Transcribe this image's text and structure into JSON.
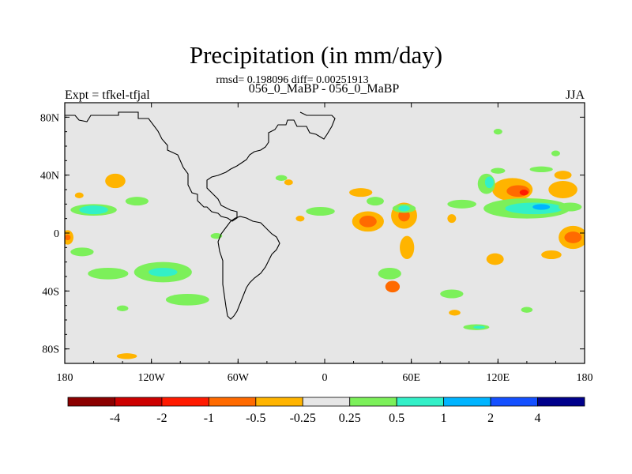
{
  "chart_data": {
    "type": "heatmap",
    "title": "Precipitation (in mm/day)",
    "stats": "rmsd= 0.198096 diff= 0.00251913",
    "subtitle_center": "056_0_MaBP - 056_0_MaBP",
    "subtitle_left": "Expt = tfkel-tfjal",
    "subtitle_right": "JJA",
    "x_ticks": [
      "180",
      "120W",
      "60W",
      "0",
      "60E",
      "120E",
      "180"
    ],
    "x_values": [
      -180,
      -120,
      -60,
      0,
      60,
      120,
      180
    ],
    "y_ticks": [
      "80N",
      "40N",
      "0",
      "40S",
      "80S"
    ],
    "y_values": [
      80,
      40,
      0,
      -40,
      -80
    ],
    "xlim": [
      -180,
      180
    ],
    "ylim": [
      -90,
      90
    ],
    "grid": false,
    "colorbar": {
      "labels": [
        "-4",
        "-2",
        "-1",
        "-0.5",
        "-0.25",
        "0.25",
        "0.5",
        "1",
        "2",
        "4"
      ],
      "colors": [
        "#8b0000",
        "#cc0000",
        "#ff1a00",
        "#ff6a00",
        "#ffb400",
        "#e6e6e6",
        "#7cf05a",
        "#33f0c8",
        "#00b4ff",
        "#1450ff",
        "#00008b"
      ]
    },
    "background_color": "#e6e6e6",
    "anomaly_regions": [
      {
        "lon": 30,
        "lat": 8,
        "rlon": 11,
        "rlat": 7,
        "level": 4
      },
      {
        "lon": 30,
        "lat": 8,
        "rlon": 6,
        "rlat": 4,
        "level": 3
      },
      {
        "lon": 55,
        "lat": 12,
        "rlon": 9,
        "rlat": 9,
        "level": 4
      },
      {
        "lon": 55,
        "lat": 12,
        "rlon": 4,
        "rlat": 4,
        "level": 3
      },
      {
        "lon": 57,
        "lat": -10,
        "rlon": 5,
        "rlat": 8,
        "level": 4
      },
      {
        "lon": 25,
        "lat": 28,
        "rlon": 8,
        "rlat": 3,
        "level": 4
      },
      {
        "lon": 47,
        "lat": -37,
        "rlon": 5,
        "rlat": 4,
        "level": 3
      },
      {
        "lon": 130,
        "lat": 30,
        "rlon": 14,
        "rlat": 8,
        "level": 4
      },
      {
        "lon": 134,
        "lat": 29,
        "rlon": 8,
        "rlat": 4,
        "level": 3
      },
      {
        "lon": 138,
        "lat": 28,
        "rlon": 3,
        "rlat": 2,
        "level": 2
      },
      {
        "lon": 165,
        "lat": 30,
        "rlon": 10,
        "rlat": 6,
        "level": 4
      },
      {
        "lon": 172,
        "lat": -3,
        "rlon": 10,
        "rlat": 8,
        "level": 4
      },
      {
        "lon": 172,
        "lat": -3,
        "rlon": 6,
        "rlat": 4,
        "level": 3
      },
      {
        "lon": 157,
        "lat": -15,
        "rlon": 7,
        "rlat": 3,
        "level": 4
      },
      {
        "lon": 118,
        "lat": -18,
        "rlon": 6,
        "rlat": 4,
        "level": 4
      },
      {
        "lon": -178,
        "lat": -3,
        "rlon": 4,
        "rlat": 5,
        "level": 4
      },
      {
        "lon": -178,
        "lat": -3,
        "rlon": 2,
        "rlat": 2,
        "level": 3
      },
      {
        "lon": -145,
        "lat": 36,
        "rlon": 7,
        "rlat": 5,
        "level": 4
      },
      {
        "lon": -170,
        "lat": 26,
        "rlon": 3,
        "rlat": 2,
        "level": 4
      },
      {
        "lon": -25,
        "lat": 35,
        "rlon": 3,
        "rlat": 2,
        "level": 4
      },
      {
        "lon": -17,
        "lat": 10,
        "rlon": 3,
        "rlat": 2,
        "level": 4
      },
      {
        "lon": 88,
        "lat": 10,
        "rlon": 3,
        "rlat": 3,
        "level": 4
      },
      {
        "lon": 165,
        "lat": 40,
        "rlon": 6,
        "rlat": 3,
        "level": 4
      },
      {
        "lon": 143,
        "lat": 38,
        "rlon": 7,
        "rlat": 2,
        "level": 5
      },
      {
        "lon": 90,
        "lat": -55,
        "rlon": 4,
        "rlat": 2,
        "level": 4
      },
      {
        "lon": -137,
        "lat": -85,
        "rlon": 7,
        "rlat": 2,
        "level": 4
      },
      {
        "lon": -160,
        "lat": 16,
        "rlon": 16,
        "rlat": 4,
        "level": 6
      },
      {
        "lon": -160,
        "lat": 16,
        "rlon": 10,
        "rlat": 3,
        "level": 7
      },
      {
        "lon": -130,
        "lat": 22,
        "rlon": 8,
        "rlat": 3,
        "level": 6
      },
      {
        "lon": -168,
        "lat": -13,
        "rlon": 8,
        "rlat": 3,
        "level": 6
      },
      {
        "lon": -150,
        "lat": -28,
        "rlon": 14,
        "rlat": 4,
        "level": 6
      },
      {
        "lon": -112,
        "lat": -27,
        "rlon": 20,
        "rlat": 7,
        "level": 6
      },
      {
        "lon": -112,
        "lat": -27,
        "rlon": 10,
        "rlat": 3,
        "level": 7
      },
      {
        "lon": -95,
        "lat": -46,
        "rlon": 15,
        "rlat": 4,
        "level": 6
      },
      {
        "lon": -30,
        "lat": 38,
        "rlon": 4,
        "rlat": 2,
        "level": 6
      },
      {
        "lon": -3,
        "lat": 15,
        "rlon": 10,
        "rlat": 3,
        "level": 6
      },
      {
        "lon": 35,
        "lat": 22,
        "rlon": 6,
        "rlat": 3,
        "level": 6
      },
      {
        "lon": 55,
        "lat": 17,
        "rlon": 8,
        "rlat": 3,
        "level": 6
      },
      {
        "lon": 55,
        "lat": 17,
        "rlon": 4,
        "rlat": 2,
        "level": 7
      },
      {
        "lon": 45,
        "lat": -28,
        "rlon": 8,
        "rlat": 4,
        "level": 6
      },
      {
        "lon": 95,
        "lat": 20,
        "rlon": 10,
        "rlat": 3,
        "level": 6
      },
      {
        "lon": 140,
        "lat": 17,
        "rlon": 30,
        "rlat": 7,
        "level": 6
      },
      {
        "lon": 145,
        "lat": 17,
        "rlon": 20,
        "rlat": 4,
        "level": 7
      },
      {
        "lon": 150,
        "lat": 18,
        "rlon": 6,
        "rlat": 2,
        "level": 8
      },
      {
        "lon": 112,
        "lat": 34,
        "rlon": 6,
        "rlat": 7,
        "level": 6
      },
      {
        "lon": 114,
        "lat": 35,
        "rlon": 3,
        "rlat": 4,
        "level": 7
      },
      {
        "lon": 120,
        "lat": 43,
        "rlon": 5,
        "rlat": 2,
        "level": 6
      },
      {
        "lon": 150,
        "lat": 44,
        "rlon": 8,
        "rlat": 2,
        "level": 6
      },
      {
        "lon": 170,
        "lat": 18,
        "rlon": 8,
        "rlat": 3,
        "level": 6
      },
      {
        "lon": 120,
        "lat": 70,
        "rlon": 3,
        "rlat": 2,
        "level": 6
      },
      {
        "lon": 88,
        "lat": -42,
        "rlon": 8,
        "rlat": 3,
        "level": 6
      },
      {
        "lon": 105,
        "lat": -65,
        "rlon": 9,
        "rlat": 2,
        "level": 6
      },
      {
        "lon": 107,
        "lat": -65,
        "rlon": 4,
        "rlat": 1,
        "level": 7
      },
      {
        "lon": 140,
        "lat": -53,
        "rlon": 4,
        "rlat": 2,
        "level": 6
      },
      {
        "lon": -140,
        "lat": -52,
        "rlon": 4,
        "rlat": 2,
        "level": 6
      },
      {
        "lon": -75,
        "lat": -2,
        "rlon": 4,
        "rlat": 2,
        "level": 6
      },
      {
        "lon": 160,
        "lat": 55,
        "rlon": 3,
        "rlat": 2,
        "level": 6
      }
    ]
  }
}
